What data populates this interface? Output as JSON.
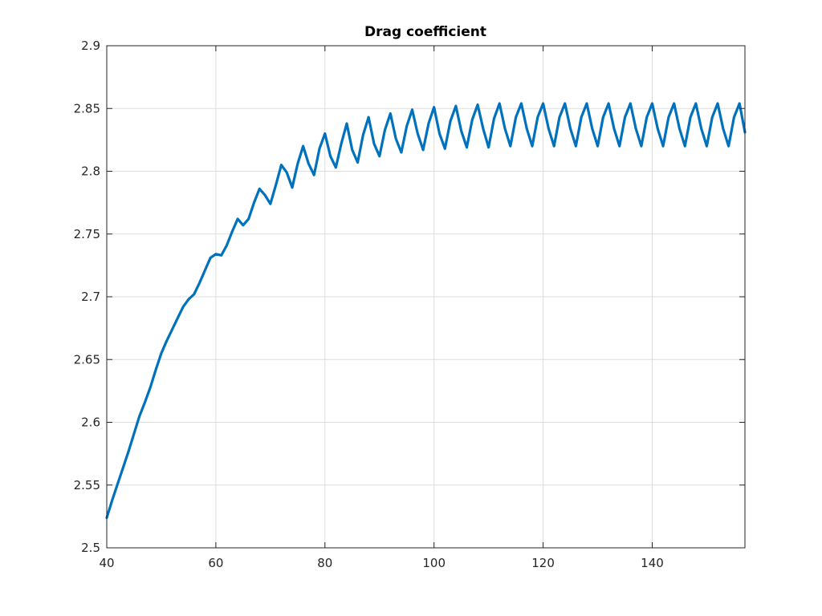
{
  "chart_data": {
    "type": "line",
    "title": "Drag coefficient",
    "xlabel": "",
    "ylabel": "",
    "xlim": [
      40,
      157
    ],
    "ylim": [
      2.5,
      2.9
    ],
    "grid": true,
    "xticks": [
      40,
      60,
      80,
      100,
      120,
      140
    ],
    "xtick_labels": [
      "40",
      "60",
      "80",
      "100",
      "120",
      "140"
    ],
    "yticks": [
      2.5,
      2.55,
      2.6,
      2.65,
      2.7,
      2.75,
      2.8,
      2.85,
      2.9
    ],
    "ytick_labels": [
      "2.5",
      "2.55",
      "2.6",
      "2.65",
      "2.7",
      "2.75",
      "2.8",
      "2.85",
      "2.9"
    ],
    "series": [
      {
        "color": "#0072BD",
        "x": [
          40,
          41,
          42,
          43,
          44,
          45,
          46,
          47,
          48,
          49,
          50,
          51,
          52,
          53,
          54,
          55,
          56,
          57,
          58,
          59,
          60,
          61,
          62,
          63,
          64,
          65,
          66,
          67,
          68,
          69,
          70,
          71,
          72,
          73,
          74,
          75,
          76,
          77,
          78,
          79,
          80,
          81,
          82,
          83,
          84,
          85,
          86,
          87,
          88,
          89,
          90,
          91,
          92,
          93,
          94,
          95,
          96,
          97,
          98,
          99,
          100,
          101,
          102,
          103,
          104,
          105,
          106,
          107,
          108,
          109,
          110,
          111,
          112,
          113,
          114,
          115,
          116,
          117,
          118,
          119,
          120,
          121,
          122,
          123,
          124,
          125,
          126,
          127,
          128,
          129,
          130,
          131,
          132,
          133,
          134,
          135,
          136,
          137,
          138,
          139,
          140,
          141,
          142,
          143,
          144,
          145,
          146,
          147,
          148,
          149,
          150,
          151,
          152,
          153,
          154,
          155,
          156,
          157
        ],
        "y": [
          2.524,
          2.538,
          2.551,
          2.564,
          2.577,
          2.591,
          2.605,
          2.616,
          2.628,
          2.642,
          2.655,
          2.665,
          2.674,
          2.683,
          2.692,
          2.698,
          2.702,
          2.711,
          2.721,
          2.731,
          2.734,
          2.733,
          2.741,
          2.752,
          2.762,
          2.757,
          2.762,
          2.775,
          2.786,
          2.781,
          2.774,
          2.789,
          2.805,
          2.799,
          2.787,
          2.806,
          2.82,
          2.806,
          2.797,
          2.818,
          2.83,
          2.812,
          2.803,
          2.822,
          2.838,
          2.817,
          2.807,
          2.829,
          2.843,
          2.822,
          2.812,
          2.833,
          2.846,
          2.826,
          2.815,
          2.836,
          2.849,
          2.83,
          2.817,
          2.838,
          2.851,
          2.83,
          2.818,
          2.84,
          2.852,
          2.832,
          2.819,
          2.841,
          2.853,
          2.834,
          2.819,
          2.842,
          2.854,
          2.834,
          2.82,
          2.843,
          2.854,
          2.834,
          2.82,
          2.843,
          2.854,
          2.834,
          2.82,
          2.843,
          2.854,
          2.834,
          2.82,
          2.843,
          2.854,
          2.834,
          2.82,
          2.843,
          2.854,
          2.834,
          2.82,
          2.843,
          2.854,
          2.834,
          2.82,
          2.843,
          2.854,
          2.834,
          2.82,
          2.843,
          2.854,
          2.834,
          2.82,
          2.843,
          2.854,
          2.834,
          2.82,
          2.843,
          2.854,
          2.834,
          2.82,
          2.843,
          2.854,
          2.831
        ]
      }
    ]
  }
}
